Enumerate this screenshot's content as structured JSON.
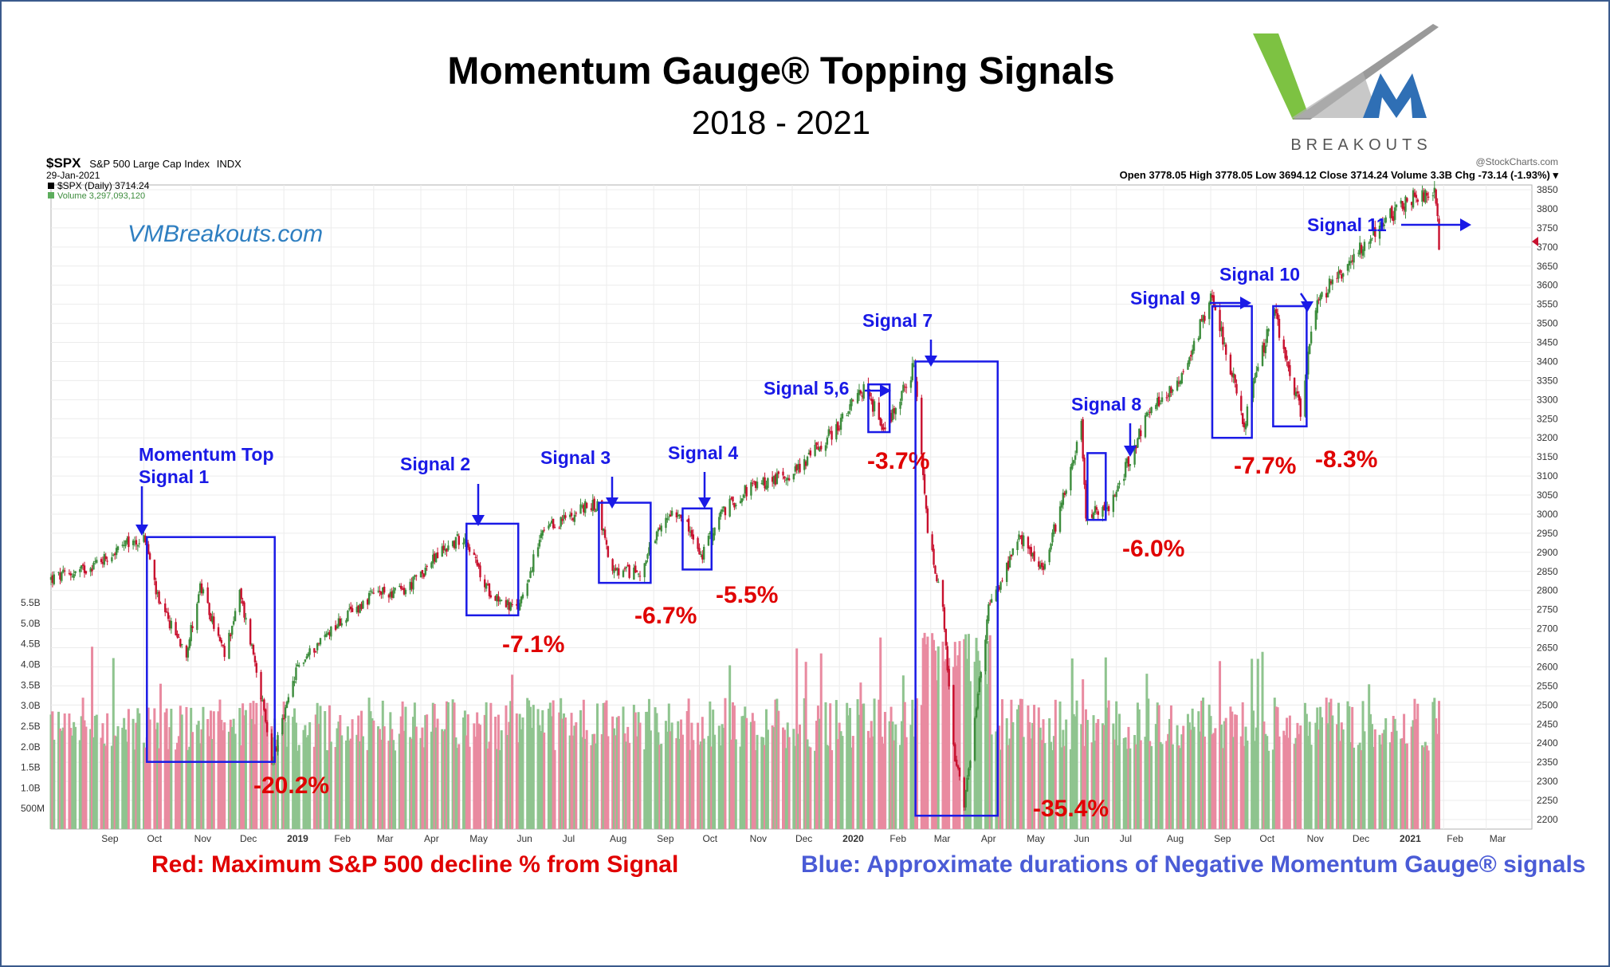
{
  "title": "Momentum Gauge® Topping Signals",
  "subtitle": "2018 - 2021",
  "logo": {
    "text": "BREAKOUTS",
    "colors": [
      "#7dc242",
      "#8c8c8c",
      "#2f6fb5"
    ]
  },
  "website": "VMBreakouts.com",
  "stockcharts": {
    "symbol": "$SPX",
    "name": "S&P 500 Large Cap Index",
    "exchange": "INDX",
    "date": "29-Jan-2021",
    "legend_price": "$SPX (Daily) 3714.24",
    "legend_volume": "Volume 3,297,093,120",
    "credit": "@StockCharts.com",
    "ohlc_line": "Open 3778.05  High 3778.05  Low 3694.12  Close 3714.24  Volume 3.3B  Chg -73.14 (-1.93%) ▾"
  },
  "captions": {
    "red": "Red: Maximum S&P 500 decline % from Signal",
    "blue": "Blue: Approximate durations of Negative Momentum Gauge® signals"
  },
  "chart_data": {
    "type": "line",
    "price_axis": {
      "min": 2200,
      "max": 3850,
      "step": 50,
      "ticks": [
        "2200",
        "2250",
        "2300",
        "2350",
        "2400",
        "2450",
        "2500",
        "2550",
        "2600",
        "2650",
        "2700",
        "2750",
        "2800",
        "2850",
        "2900",
        "2950",
        "3000",
        "3050",
        "3100",
        "3150",
        "3200",
        "3250",
        "3300",
        "3350",
        "3400",
        "3450",
        "3500",
        "3550",
        "3600",
        "3650",
        "3700",
        "3750",
        "3800",
        "3850"
      ]
    },
    "volume_axis": {
      "ticks": [
        {
          "label": "500M",
          "value": 0.5
        },
        {
          "label": "1.0B",
          "value": 1.0
        },
        {
          "label": "1.5B",
          "value": 1.5
        },
        {
          "label": "2.0B",
          "value": 2.0
        },
        {
          "label": "2.5B",
          "value": 2.5
        },
        {
          "label": "3.0B",
          "value": 3.0
        },
        {
          "label": "3.5B",
          "value": 3.5
        },
        {
          "label": "4.0B",
          "value": 4.0
        },
        {
          "label": "4.5B",
          "value": 4.5
        },
        {
          "label": "5.0B",
          "value": 5.0
        },
        {
          "label": "5.5B",
          "value": 5.5
        }
      ],
      "max": 6.2
    },
    "x_axis": {
      "start": "2018-08-01",
      "end": "2021-03-31",
      "labels": [
        {
          "label": "Sep",
          "date": "2018-09-01"
        },
        {
          "label": "Oct",
          "date": "2018-10-01"
        },
        {
          "label": "Nov",
          "date": "2018-11-01"
        },
        {
          "label": "Dec",
          "date": "2018-12-01"
        },
        {
          "label": "2019",
          "date": "2019-01-01",
          "bold": true
        },
        {
          "label": "Feb",
          "date": "2019-02-01"
        },
        {
          "label": "Mar",
          "date": "2019-03-01"
        },
        {
          "label": "Apr",
          "date": "2019-04-01"
        },
        {
          "label": "May",
          "date": "2019-05-01"
        },
        {
          "label": "Jun",
          "date": "2019-06-01"
        },
        {
          "label": "Jul",
          "date": "2019-07-01"
        },
        {
          "label": "Aug",
          "date": "2019-08-01"
        },
        {
          "label": "Sep",
          "date": "2019-09-01"
        },
        {
          "label": "Oct",
          "date": "2019-10-01"
        },
        {
          "label": "Nov",
          "date": "2019-11-01"
        },
        {
          "label": "Dec",
          "date": "2019-12-01"
        },
        {
          "label": "2020",
          "date": "2020-01-01",
          "bold": true
        },
        {
          "label": "Feb",
          "date": "2020-02-01"
        },
        {
          "label": "Mar",
          "date": "2020-03-01"
        },
        {
          "label": "Apr",
          "date": "2020-04-01"
        },
        {
          "label": "May",
          "date": "2020-05-01"
        },
        {
          "label": "Jun",
          "date": "2020-06-01"
        },
        {
          "label": "Jul",
          "date": "2020-07-01"
        },
        {
          "label": "Aug",
          "date": "2020-08-01"
        },
        {
          "label": "Sep",
          "date": "2020-09-01"
        },
        {
          "label": "Oct",
          "date": "2020-10-01"
        },
        {
          "label": "Nov",
          "date": "2020-11-01"
        },
        {
          "label": "Dec",
          "date": "2020-12-01"
        },
        {
          "label": "2021",
          "date": "2021-01-01",
          "bold": true
        },
        {
          "label": "Feb",
          "date": "2021-02-01"
        },
        {
          "label": "Mar",
          "date": "2021-03-01"
        }
      ]
    },
    "series": [
      {
        "name": "$SPX (Daily) 3714.24",
        "points": [
          [
            "2018-08-01",
            2830
          ],
          [
            "2018-08-20",
            2850
          ],
          [
            "2018-09-05",
            2885
          ],
          [
            "2018-09-20",
            2920
          ],
          [
            "2018-10-02",
            2935
          ],
          [
            "2018-10-11",
            2760
          ],
          [
            "2018-10-29",
            2640
          ],
          [
            "2018-11-07",
            2810
          ],
          [
            "2018-11-23",
            2630
          ],
          [
            "2018-12-03",
            2790
          ],
          [
            "2018-12-14",
            2600
          ],
          [
            "2018-12-24",
            2350
          ],
          [
            "2019-01-10",
            2600
          ],
          [
            "2019-02-01",
            2700
          ],
          [
            "2019-03-01",
            2790
          ],
          [
            "2019-03-22",
            2800
          ],
          [
            "2019-04-15",
            2905
          ],
          [
            "2019-04-30",
            2945
          ],
          [
            "2019-05-13",
            2810
          ],
          [
            "2019-06-03",
            2745
          ],
          [
            "2019-06-20",
            2950
          ],
          [
            "2019-07-15",
            3015
          ],
          [
            "2019-07-26",
            3025
          ],
          [
            "2019-08-05",
            2845
          ],
          [
            "2019-08-23",
            2850
          ],
          [
            "2019-09-12",
            3010
          ],
          [
            "2019-09-19",
            3005
          ],
          [
            "2019-10-02",
            2885
          ],
          [
            "2019-10-15",
            3000
          ],
          [
            "2019-11-01",
            3065
          ],
          [
            "2019-12-02",
            3110
          ],
          [
            "2019-12-31",
            3230
          ],
          [
            "2020-01-17",
            3330
          ],
          [
            "2020-01-31",
            3225
          ],
          [
            "2020-02-19",
            3385
          ],
          [
            "2020-02-28",
            2955
          ],
          [
            "2020-03-09",
            2745
          ],
          [
            "2020-03-16",
            2385
          ],
          [
            "2020-03-23",
            2235
          ],
          [
            "2020-04-08",
            2750
          ],
          [
            "2020-04-29",
            2940
          ],
          [
            "2020-05-14",
            2850
          ],
          [
            "2020-06-08",
            3230
          ],
          [
            "2020-06-11",
            3000
          ],
          [
            "2020-06-26",
            3010
          ],
          [
            "2020-07-20",
            3250
          ],
          [
            "2020-08-14",
            3370
          ],
          [
            "2020-09-02",
            3580
          ],
          [
            "2020-09-23",
            3235
          ],
          [
            "2020-10-12",
            3535
          ],
          [
            "2020-10-30",
            3270
          ],
          [
            "2020-11-09",
            3550
          ],
          [
            "2020-12-08",
            3700
          ],
          [
            "2021-01-08",
            3825
          ],
          [
            "2021-01-26",
            3850
          ],
          [
            "2021-01-29",
            3714
          ]
        ]
      }
    ],
    "signals": [
      {
        "label": "Momentum Top\nSignal 1",
        "start": "2018-10-03",
        "end": "2018-12-26",
        "top": 2940,
        "bottom": 2351,
        "decline": "-20.2%"
      },
      {
        "label": "Signal 2",
        "start": "2019-05-01",
        "end": "2019-06-04",
        "top": 2975,
        "bottom": 2735,
        "decline": "-7.1%"
      },
      {
        "label": "Signal 3",
        "start": "2019-07-27",
        "end": "2019-08-30",
        "top": 3030,
        "bottom": 2820,
        "decline": "-6.7%"
      },
      {
        "label": "Signal 4",
        "start": "2019-09-20",
        "end": "2019-10-09",
        "top": 3015,
        "bottom": 2855,
        "decline": "-5.5%"
      },
      {
        "label": "Signal 5,6",
        "start": "2020-01-20",
        "end": "2020-02-03",
        "top": 3340,
        "bottom": 3215,
        "decline": "-3.7%"
      },
      {
        "label": "Signal 7",
        "start": "2020-02-20",
        "end": "2020-04-14",
        "top": 3400,
        "bottom": 2210,
        "decline": "-35.4%"
      },
      {
        "label": "Signal 8",
        "start": "2020-06-12",
        "end": "2020-06-24",
        "top": 3160,
        "bottom": 2985,
        "decline": "-6.0%"
      },
      {
        "label": "Signal 9",
        "start": "2020-09-02",
        "end": "2020-09-28",
        "top": 3545,
        "bottom": 3200,
        "decline": "-7.7%"
      },
      {
        "label": "Signal 10",
        "start": "2020-10-12",
        "end": "2020-11-03",
        "top": 3545,
        "bottom": 3230,
        "decline": "-8.3%"
      },
      {
        "label": "Signal 11",
        "start": "2021-01-20",
        "end": "2021-01-29",
        "top": null,
        "bottom": null,
        "decline": null
      }
    ],
    "grid": true,
    "colors": {
      "up": "#3c8c3c",
      "down": "#c8102e",
      "vol_up": "#8fc48f",
      "vol_down": "#e98aa0",
      "box": "#1a1ae6",
      "signal_text": "#1a1ae6",
      "decline_text": "#e00000"
    }
  }
}
